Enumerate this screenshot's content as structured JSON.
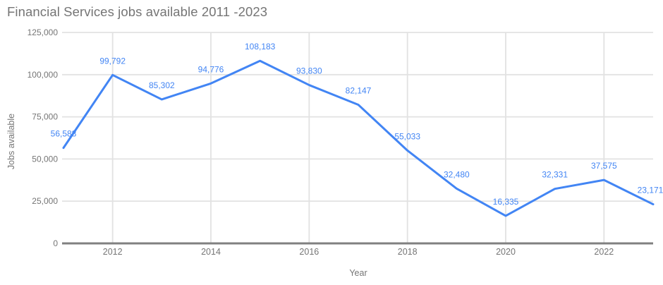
{
  "chart_data": {
    "type": "line",
    "title": "Financial Services jobs available 2011 -2023",
    "xlabel": "Year",
    "ylabel": "Jobs available",
    "x": [
      2011,
      2012,
      2013,
      2014,
      2015,
      2016,
      2017,
      2018,
      2019,
      2020,
      2021,
      2022,
      2023
    ],
    "series": [
      {
        "name": "Jobs available",
        "values": [
          56588,
          99792,
          85302,
          94776,
          108183,
          93830,
          82147,
          55033,
          32480,
          16335,
          32331,
          37575,
          23171
        ],
        "value_labels": [
          "56,588",
          "99,792",
          "85,302",
          "94,776",
          "108,183",
          "93,830",
          "82,147",
          "55,033",
          "32,480",
          "16,335",
          "32,331",
          "37,575",
          "23,171"
        ]
      }
    ],
    "ylim": [
      0,
      125000
    ],
    "ytick_values": [
      0,
      25000,
      50000,
      75000,
      100000,
      125000
    ],
    "ytick_labels": [
      "0",
      "25,000",
      "50,000",
      "75,000",
      "100,000",
      "125,000"
    ],
    "xtick_values": [
      2012,
      2014,
      2016,
      2018,
      2020,
      2022
    ],
    "xtick_labels": [
      "2012",
      "2014",
      "2016",
      "2018",
      "2020",
      "2022"
    ],
    "grid": true,
    "legend_position": "none",
    "colors": {
      "series": "#4285f4",
      "data_label": "#4285f4",
      "grid": "#e2e2e2",
      "axis_line": "#808080",
      "tick_label": "#757575",
      "axis_title": "#757575",
      "title": "#757575"
    }
  }
}
